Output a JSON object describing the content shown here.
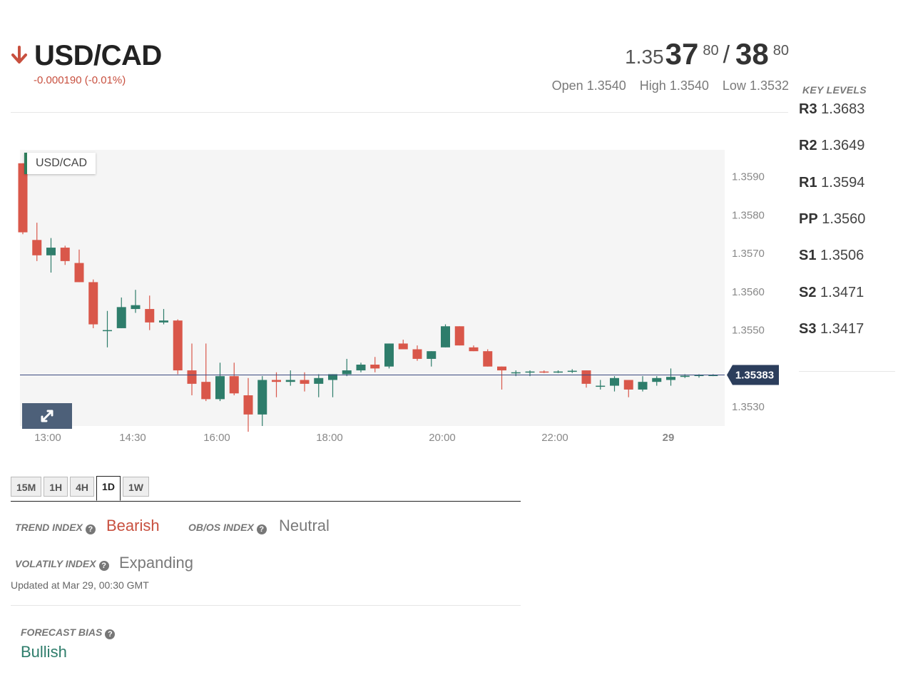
{
  "header": {
    "pair": "USD/CAD",
    "change": "-0.000190 (-0.01%)",
    "direction_icon": "arrow-down-icon",
    "bid_prefix": "1.35",
    "bid_big": "37",
    "bid_sup": "80",
    "separator": "/",
    "ask_big": "38",
    "ask_sup": "80",
    "open_label": "Open",
    "open_value": "1.3540",
    "high_label": "High",
    "high_value": "1.3540",
    "low_label": "Low",
    "low_value": "1.3532"
  },
  "key_levels": {
    "title": "KEY LEVELS",
    "levels": [
      {
        "name": "R3",
        "value": "1.3683"
      },
      {
        "name": "R2",
        "value": "1.3649"
      },
      {
        "name": "R1",
        "value": "1.3594"
      },
      {
        "name": "PP",
        "value": "1.3560"
      },
      {
        "name": "S1",
        "value": "1.3506"
      },
      {
        "name": "S2",
        "value": "1.3471"
      },
      {
        "name": "S3",
        "value": "1.3417"
      }
    ]
  },
  "chart": {
    "label": "USD/CAD",
    "expand_icon": "expand-icon"
  },
  "chart_data": {
    "type": "candlestick",
    "symbol": "USD/CAD",
    "current_price": "1.35383",
    "ylim": [
      1.3525,
      1.3597
    ],
    "y_ticks": [
      "1.3590",
      "1.3580",
      "1.3570",
      "1.3560",
      "1.3550",
      "1.3540",
      "1.3530"
    ],
    "x_ticks": [
      "13:00",
      "14:30",
      "16:00",
      "18:00",
      "20:00",
      "22:00",
      "29"
    ],
    "colors": {
      "up": "#2e7d6b",
      "down": "#d9574a",
      "price_line": "#3b4a80",
      "price_tag": "#2c3e5c"
    },
    "candles": [
      {
        "o": 1.35935,
        "h": 1.35935,
        "l": 1.3575,
        "c": 1.35755
      },
      {
        "o": 1.35735,
        "h": 1.3578,
        "l": 1.3568,
        "c": 1.35695
      },
      {
        "o": 1.35695,
        "h": 1.3574,
        "l": 1.3565,
        "c": 1.35715
      },
      {
        "o": 1.35715,
        "h": 1.3572,
        "l": 1.3567,
        "c": 1.3568
      },
      {
        "o": 1.35675,
        "h": 1.3571,
        "l": 1.35625,
        "c": 1.35625
      },
      {
        "o": 1.35625,
        "h": 1.35632,
        "l": 1.35505,
        "c": 1.35515
      },
      {
        "o": 1.355,
        "h": 1.3555,
        "l": 1.35455,
        "c": 1.355
      },
      {
        "o": 1.35505,
        "h": 1.35585,
        "l": 1.35505,
        "c": 1.3556
      },
      {
        "o": 1.35555,
        "h": 1.35605,
        "l": 1.35545,
        "c": 1.35565
      },
      {
        "o": 1.35555,
        "h": 1.3559,
        "l": 1.355,
        "c": 1.3552
      },
      {
        "o": 1.3552,
        "h": 1.35555,
        "l": 1.35515,
        "c": 1.35525
      },
      {
        "o": 1.35525,
        "h": 1.35528,
        "l": 1.35385,
        "c": 1.35395
      },
      {
        "o": 1.35395,
        "h": 1.35465,
        "l": 1.3533,
        "c": 1.3536
      },
      {
        "o": 1.35365,
        "h": 1.35465,
        "l": 1.35315,
        "c": 1.3532
      },
      {
        "o": 1.3532,
        "h": 1.35415,
        "l": 1.35315,
        "c": 1.3538
      },
      {
        "o": 1.3538,
        "h": 1.35415,
        "l": 1.3533,
        "c": 1.35335
      },
      {
        "o": 1.3533,
        "h": 1.35375,
        "l": 1.35235,
        "c": 1.3528
      },
      {
        "o": 1.3528,
        "h": 1.3538,
        "l": 1.3525,
        "c": 1.3537
      },
      {
        "o": 1.3537,
        "h": 1.3539,
        "l": 1.35325,
        "c": 1.35365
      },
      {
        "o": 1.35365,
        "h": 1.35395,
        "l": 1.35355,
        "c": 1.3537
      },
      {
        "o": 1.3537,
        "h": 1.3539,
        "l": 1.3534,
        "c": 1.3536
      },
      {
        "o": 1.3536,
        "h": 1.35385,
        "l": 1.35325,
        "c": 1.35375
      },
      {
        "o": 1.3537,
        "h": 1.35385,
        "l": 1.35325,
        "c": 1.35385
      },
      {
        "o": 1.35385,
        "h": 1.35425,
        "l": 1.3538,
        "c": 1.35395
      },
      {
        "o": 1.35395,
        "h": 1.35415,
        "l": 1.3539,
        "c": 1.3541
      },
      {
        "o": 1.3541,
        "h": 1.3543,
        "l": 1.3539,
        "c": 1.354
      },
      {
        "o": 1.35405,
        "h": 1.35465,
        "l": 1.354,
        "c": 1.35465
      },
      {
        "o": 1.35465,
        "h": 1.35475,
        "l": 1.3545,
        "c": 1.3545
      },
      {
        "o": 1.3545,
        "h": 1.3546,
        "l": 1.3542,
        "c": 1.35425
      },
      {
        "o": 1.35425,
        "h": 1.35445,
        "l": 1.35405,
        "c": 1.35445
      },
      {
        "o": 1.35455,
        "h": 1.35515,
        "l": 1.35455,
        "c": 1.3551
      },
      {
        "o": 1.3551,
        "h": 1.3551,
        "l": 1.3546,
        "c": 1.3546
      },
      {
        "o": 1.35455,
        "h": 1.3546,
        "l": 1.35445,
        "c": 1.35445
      },
      {
        "o": 1.35445,
        "h": 1.3545,
        "l": 1.35405,
        "c": 1.35405
      },
      {
        "o": 1.35405,
        "h": 1.35405,
        "l": 1.35345,
        "c": 1.35395
      },
      {
        "o": 1.3539,
        "h": 1.35395,
        "l": 1.3538,
        "c": 1.3539
      },
      {
        "o": 1.3539,
        "h": 1.35395,
        "l": 1.3538,
        "c": 1.35392
      },
      {
        "o": 1.35392,
        "h": 1.35395,
        "l": 1.35388,
        "c": 1.3539
      },
      {
        "o": 1.3539,
        "h": 1.35395,
        "l": 1.35388,
        "c": 1.35392
      },
      {
        "o": 1.35392,
        "h": 1.35398,
        "l": 1.35388,
        "c": 1.35394
      },
      {
        "o": 1.35395,
        "h": 1.35395,
        "l": 1.3535,
        "c": 1.3536
      },
      {
        "o": 1.35355,
        "h": 1.3537,
        "l": 1.35345,
        "c": 1.35355
      },
      {
        "o": 1.35355,
        "h": 1.3538,
        "l": 1.3534,
        "c": 1.35375
      },
      {
        "o": 1.3537,
        "h": 1.3537,
        "l": 1.35325,
        "c": 1.35345
      },
      {
        "o": 1.35345,
        "h": 1.3538,
        "l": 1.3534,
        "c": 1.35365
      },
      {
        "o": 1.35365,
        "h": 1.3538,
        "l": 1.35355,
        "c": 1.35375
      },
      {
        "o": 1.3537,
        "h": 1.354,
        "l": 1.35355,
        "c": 1.35378
      },
      {
        "o": 1.35378,
        "h": 1.35385,
        "l": 1.35375,
        "c": 1.35381
      },
      {
        "o": 1.35381,
        "h": 1.35385,
        "l": 1.35376,
        "c": 1.35383
      },
      {
        "o": 1.35383,
        "h": 1.35385,
        "l": 1.3538,
        "c": 1.35383
      }
    ]
  },
  "timeframes": {
    "tabs": [
      "15M",
      "1H",
      "4H",
      "1D",
      "1W"
    ],
    "active": "1D"
  },
  "indices": {
    "trend_label": "TREND INDEX",
    "trend_value": "Bearish",
    "trend_color": "#c8503f",
    "obos_label": "OB/OS INDEX",
    "obos_value": "Neutral",
    "obos_color": "#7a7a7a",
    "volatility_label": "VOLATILY INDEX",
    "volatility_value": "Expanding",
    "volatility_color": "#7a7a7a",
    "updated": "Updated at Mar 29, 00:30 GMT",
    "help_icon": "help-icon"
  },
  "forecast": {
    "label": "FORECAST BIAS",
    "value": "Bullish",
    "color": "#2e7d6b"
  }
}
